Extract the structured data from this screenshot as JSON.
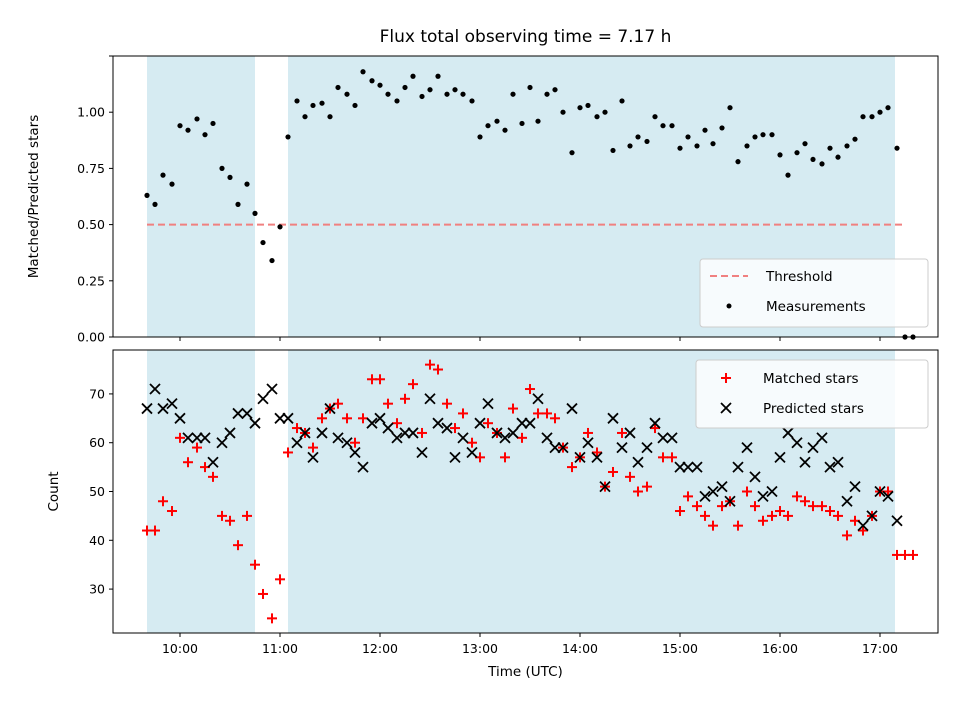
{
  "chart_data": [
    {
      "type": "scatter",
      "title": "Flux total observing time = 7.17 h",
      "xlabel": "",
      "ylabel": "Matched/Predicted stars",
      "xlim": [
        9.33,
        17.58
      ],
      "ylim": [
        0.0,
        1.25
      ],
      "y_ticks": [
        0.0,
        0.25,
        0.5,
        0.75,
        1.0,
        1.25
      ],
      "y_tick_labels": [
        "0.00",
        "0.25",
        "0.50",
        "0.75",
        "1.00",
        ""
      ],
      "shaded_intervals": [
        [
          9.67,
          10.75
        ],
        [
          11.08,
          17.15
        ]
      ],
      "threshold": {
        "value": 0.5,
        "x_range": [
          9.67,
          17.25
        ],
        "color": "#f08080"
      },
      "legend": {
        "position": "lower right",
        "entries": [
          "Threshold",
          "Measurements"
        ]
      },
      "series": [
        {
          "name": "Measurements",
          "color": "#000000",
          "marker": "dot",
          "x": [
            9.67,
            9.75,
            9.83,
            9.92,
            10.0,
            10.08,
            10.17,
            10.25,
            10.33,
            10.42,
            10.5,
            10.58,
            10.67,
            10.75,
            10.83,
            10.92,
            11.0,
            11.08,
            11.17,
            11.25,
            11.33,
            11.42,
            11.5,
            11.58,
            11.67,
            11.75,
            11.83,
            11.92,
            12.0,
            12.08,
            12.17,
            12.25,
            12.33,
            12.42,
            12.5,
            12.58,
            12.67,
            12.75,
            12.83,
            12.92,
            13.0,
            13.08,
            13.17,
            13.25,
            13.33,
            13.42,
            13.5,
            13.58,
            13.67,
            13.75,
            13.83,
            13.92,
            14.0,
            14.08,
            14.17,
            14.25,
            14.33,
            14.42,
            14.5,
            14.58,
            14.67,
            14.75,
            14.83,
            14.92,
            15.0,
            15.08,
            15.17,
            15.25,
            15.33,
            15.42,
            15.5,
            15.58,
            15.67,
            15.75,
            15.83,
            15.92,
            16.0,
            16.08,
            16.17,
            16.25,
            16.33,
            16.42,
            16.5,
            16.58,
            16.67,
            16.75,
            16.83,
            16.92,
            17.0,
            17.08,
            17.17,
            17.25,
            17.33
          ],
          "y": [
            0.63,
            0.59,
            0.72,
            0.68,
            0.94,
            0.92,
            0.97,
            0.9,
            0.95,
            0.75,
            0.71,
            0.59,
            0.68,
            0.55,
            0.42,
            0.34,
            0.49,
            0.89,
            1.05,
            0.98,
            1.03,
            1.04,
            0.98,
            1.11,
            1.08,
            1.03,
            1.18,
            1.14,
            1.12,
            1.08,
            1.05,
            1.11,
            1.16,
            1.07,
            1.1,
            1.16,
            1.08,
            1.1,
            1.08,
            1.05,
            0.89,
            0.94,
            0.96,
            0.92,
            1.08,
            0.95,
            1.11,
            0.96,
            1.08,
            1.1,
            1.0,
            0.82,
            1.02,
            1.03,
            0.98,
            1.0,
            0.83,
            1.05,
            0.85,
            0.89,
            0.87,
            0.98,
            0.94,
            0.94,
            0.84,
            0.89,
            0.85,
            0.92,
            0.86,
            0.93,
            1.02,
            0.78,
            0.85,
            0.89,
            0.9,
            0.9,
            0.81,
            0.72,
            0.82,
            0.86,
            0.79,
            0.77,
            0.84,
            0.8,
            0.85,
            0.88,
            0.98,
            0.98,
            1.0,
            1.02,
            0.84,
            0.0,
            0.0
          ]
        }
      ]
    },
    {
      "type": "scatter",
      "title": "",
      "xlabel": "Time (UTC)",
      "ylabel": "Count",
      "xlim": [
        9.33,
        17.58
      ],
      "ylim": [
        21,
        79
      ],
      "x_ticks": [
        10,
        11,
        12,
        13,
        14,
        15,
        16,
        17
      ],
      "x_tick_labels": [
        "10:00",
        "11:00",
        "12:00",
        "13:00",
        "14:00",
        "15:00",
        "16:00",
        "17:00"
      ],
      "y_ticks": [
        30,
        40,
        50,
        60,
        70
      ],
      "y_tick_labels": [
        "30",
        "40",
        "50",
        "60",
        "70"
      ],
      "shaded_intervals": [
        [
          9.67,
          10.75
        ],
        [
          11.08,
          17.15
        ]
      ],
      "legend": {
        "position": "upper right",
        "entries": [
          "Matched stars",
          "Predicted stars"
        ]
      },
      "series": [
        {
          "name": "Matched stars",
          "color": "#ff0000",
          "marker": "plus",
          "x": [
            9.67,
            9.75,
            9.83,
            9.92,
            10.0,
            10.08,
            10.17,
            10.25,
            10.33,
            10.42,
            10.5,
            10.58,
            10.67,
            10.75,
            10.83,
            10.92,
            11.0,
            11.08,
            11.17,
            11.25,
            11.33,
            11.42,
            11.5,
            11.58,
            11.67,
            11.75,
            11.83,
            11.92,
            12.0,
            12.08,
            12.17,
            12.25,
            12.33,
            12.42,
            12.5,
            12.58,
            12.67,
            12.75,
            12.83,
            12.92,
            13.0,
            13.08,
            13.17,
            13.25,
            13.33,
            13.42,
            13.5,
            13.58,
            13.67,
            13.75,
            13.83,
            13.92,
            14.0,
            14.08,
            14.17,
            14.25,
            14.33,
            14.42,
            14.5,
            14.58,
            14.67,
            14.75,
            14.83,
            14.92,
            15.0,
            15.08,
            15.17,
            15.25,
            15.33,
            15.42,
            15.5,
            15.58,
            15.67,
            15.75,
            15.83,
            15.92,
            16.0,
            16.08,
            16.17,
            16.25,
            16.33,
            16.42,
            16.5,
            16.58,
            16.67,
            16.75,
            16.83,
            16.92,
            17.0,
            17.08,
            17.17,
            17.25,
            17.33
          ],
          "y": [
            42,
            42,
            48,
            46,
            61,
            56,
            59,
            55,
            53,
            45,
            44,
            39,
            45,
            35,
            29,
            24,
            32,
            58,
            63,
            62,
            59,
            65,
            67,
            68,
            65,
            60,
            65,
            73,
            73,
            68,
            64,
            69,
            72,
            62,
            76,
            75,
            68,
            63,
            66,
            60,
            57,
            64,
            62,
            57,
            67,
            61,
            71,
            66,
            66,
            65,
            59,
            55,
            57,
            62,
            58,
            51,
            54,
            62,
            53,
            50,
            51,
            63,
            57,
            57,
            46,
            49,
            47,
            45,
            43,
            47,
            48,
            43,
            50,
            47,
            44,
            45,
            46,
            45,
            49,
            48,
            47,
            47,
            46,
            45,
            41,
            44,
            42,
            45,
            50,
            50,
            37,
            37,
            37
          ]
        },
        {
          "name": "Predicted stars",
          "color": "#000000",
          "marker": "x",
          "x": [
            9.67,
            9.75,
            9.83,
            9.92,
            10.0,
            10.08,
            10.17,
            10.25,
            10.33,
            10.42,
            10.5,
            10.58,
            10.67,
            10.75,
            10.83,
            10.92,
            11.0,
            11.08,
            11.17,
            11.25,
            11.33,
            11.42,
            11.5,
            11.58,
            11.67,
            11.75,
            11.83,
            11.92,
            12.0,
            12.08,
            12.17,
            12.25,
            12.33,
            12.42,
            12.5,
            12.58,
            12.67,
            12.75,
            12.83,
            12.92,
            13.0,
            13.08,
            13.17,
            13.25,
            13.33,
            13.42,
            13.5,
            13.58,
            13.67,
            13.75,
            13.83,
            13.92,
            14.0,
            14.08,
            14.17,
            14.25,
            14.33,
            14.42,
            14.5,
            14.58,
            14.67,
            14.75,
            14.83,
            14.92,
            15.0,
            15.08,
            15.17,
            15.25,
            15.33,
            15.42,
            15.5,
            15.58,
            15.67,
            15.75,
            15.83,
            15.92,
            16.0,
            16.08,
            16.17,
            16.25,
            16.33,
            16.42,
            16.5,
            16.58,
            16.67,
            16.75,
            16.83,
            16.92,
            17.0,
            17.08,
            17.17
          ],
          "y": [
            67,
            71,
            67,
            68,
            65,
            61,
            61,
            61,
            56,
            60,
            62,
            66,
            66,
            64,
            69,
            71,
            65,
            65,
            60,
            62,
            57,
            62,
            67,
            61,
            60,
            58,
            55,
            64,
            65,
            63,
            61,
            62,
            62,
            58,
            69,
            64,
            63,
            57,
            61,
            58,
            64,
            68,
            62,
            61,
            62,
            64,
            64,
            69,
            61,
            59,
            59,
            67,
            57,
            60,
            57,
            51,
            65,
            59,
            62,
            56,
            59,
            64,
            61,
            61,
            55,
            55,
            55,
            49,
            50,
            51,
            48,
            55,
            59,
            53,
            49,
            50,
            57,
            62,
            60,
            56,
            59,
            61,
            55,
            56,
            48,
            51,
            43,
            45,
            50,
            49,
            44
          ]
        }
      ]
    }
  ]
}
